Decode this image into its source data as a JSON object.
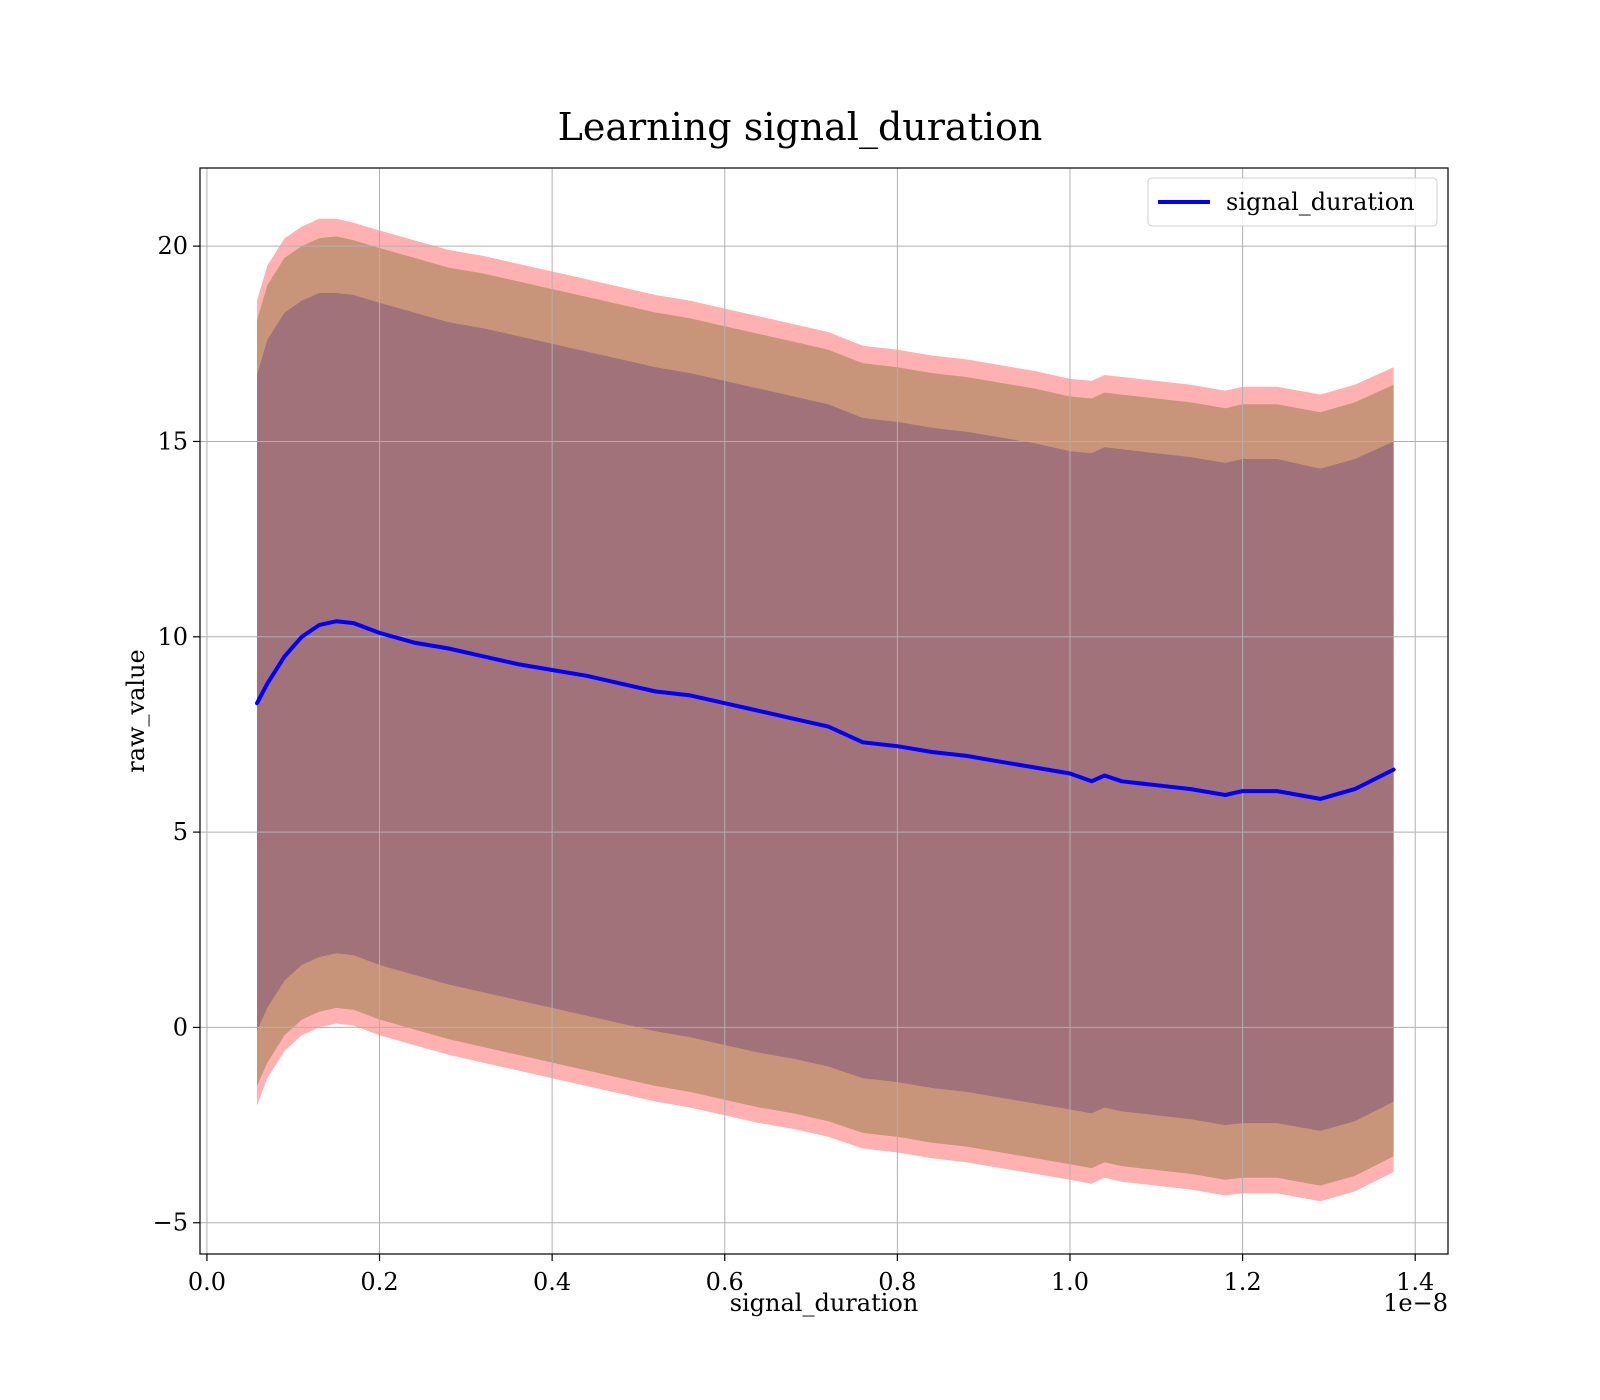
{
  "chart_data": {
    "type": "area",
    "title": "Learning signal_duration",
    "xlabel": "signal_duration",
    "ylabel": "raw_value",
    "x_offset_label": "1e−8",
    "xlim": [
      -0.008,
      1.438
    ],
    "ylim": [
      -5.8,
      22.0
    ],
    "x_ticks": [
      0.0,
      0.2,
      0.4,
      0.6,
      0.8,
      1.0,
      1.2,
      1.4
    ],
    "x_tick_labels": [
      "0.0",
      "0.2",
      "0.4",
      "0.6",
      "0.8",
      "1.0",
      "1.2",
      "1.4"
    ],
    "y_ticks": [
      -5,
      0,
      5,
      10,
      15,
      20
    ],
    "y_tick_labels": [
      "−5",
      "0",
      "5",
      "10",
      "15",
      "20"
    ],
    "grid": true,
    "legend": {
      "position": "top-right",
      "entries": [
        "signal_duration"
      ]
    },
    "colors": {
      "line": "#0000ff",
      "outer_band": "#ffb0b0",
      "middle_band": "#c8957a",
      "inner_band": "#a2727b"
    },
    "x": [
      0.058,
      0.07,
      0.09,
      0.11,
      0.13,
      0.15,
      0.17,
      0.2,
      0.24,
      0.28,
      0.32,
      0.36,
      0.4,
      0.44,
      0.48,
      0.52,
      0.56,
      0.6,
      0.64,
      0.68,
      0.72,
      0.76,
      0.8,
      0.84,
      0.88,
      0.92,
      0.96,
      1.0,
      1.025,
      1.04,
      1.06,
      1.1,
      1.14,
      1.18,
      1.2,
      1.24,
      1.29,
      1.33,
      1.375
    ],
    "series": [
      {
        "name": "signal_duration",
        "values": [
          8.3,
          8.8,
          9.5,
          10.0,
          10.3,
          10.4,
          10.35,
          10.1,
          9.85,
          9.7,
          9.5,
          9.3,
          9.15,
          9.0,
          8.8,
          8.6,
          8.5,
          8.3,
          8.1,
          7.9,
          7.7,
          7.3,
          7.2,
          7.05,
          6.95,
          6.8,
          6.65,
          6.5,
          6.3,
          6.45,
          6.3,
          6.2,
          6.1,
          5.95,
          6.05,
          6.05,
          5.85,
          6.1,
          6.6
        ]
      }
    ],
    "bands": [
      {
        "upper": [
          18.6,
          19.5,
          20.2,
          20.5,
          20.7,
          20.7,
          20.6,
          20.4,
          20.15,
          19.9,
          19.75,
          19.55,
          19.35,
          19.15,
          18.95,
          18.75,
          18.6,
          18.4,
          18.2,
          18.0,
          17.8,
          17.45,
          17.35,
          17.2,
          17.1,
          16.95,
          16.8,
          16.6,
          16.55,
          16.7,
          16.65,
          16.55,
          16.45,
          16.3,
          16.4,
          16.4,
          16.2,
          16.45,
          16.9
        ],
        "lower": [
          -2.0,
          -1.3,
          -0.6,
          -0.2,
          0.0,
          0.1,
          0.05,
          -0.2,
          -0.45,
          -0.7,
          -0.9,
          -1.1,
          -1.3,
          -1.5,
          -1.7,
          -1.9,
          -2.05,
          -2.25,
          -2.45,
          -2.6,
          -2.8,
          -3.1,
          -3.2,
          -3.35,
          -3.45,
          -3.6,
          -3.75,
          -3.9,
          -4.0,
          -3.85,
          -3.95,
          -4.05,
          -4.15,
          -4.3,
          -4.25,
          -4.25,
          -4.45,
          -4.2,
          -3.7
        ]
      },
      {
        "upper": [
          18.1,
          19.0,
          19.7,
          20.0,
          20.2,
          20.25,
          20.15,
          19.95,
          19.7,
          19.45,
          19.3,
          19.1,
          18.9,
          18.7,
          18.5,
          18.3,
          18.15,
          17.95,
          17.75,
          17.55,
          17.35,
          17.0,
          16.9,
          16.75,
          16.65,
          16.5,
          16.35,
          16.15,
          16.1,
          16.25,
          16.2,
          16.1,
          16.0,
          15.85,
          15.95,
          15.95,
          15.75,
          16.0,
          16.45
        ],
        "lower": [
          -1.5,
          -0.9,
          -0.2,
          0.2,
          0.4,
          0.5,
          0.45,
          0.2,
          -0.05,
          -0.3,
          -0.5,
          -0.7,
          -0.9,
          -1.1,
          -1.3,
          -1.5,
          -1.65,
          -1.85,
          -2.05,
          -2.2,
          -2.4,
          -2.7,
          -2.8,
          -2.95,
          -3.05,
          -3.2,
          -3.35,
          -3.5,
          -3.6,
          -3.45,
          -3.55,
          -3.65,
          -3.75,
          -3.9,
          -3.85,
          -3.85,
          -4.05,
          -3.8,
          -3.3
        ]
      },
      {
        "upper": [
          16.7,
          17.6,
          18.3,
          18.6,
          18.8,
          18.8,
          18.75,
          18.55,
          18.3,
          18.05,
          17.9,
          17.7,
          17.5,
          17.3,
          17.1,
          16.9,
          16.75,
          16.55,
          16.35,
          16.15,
          15.95,
          15.6,
          15.5,
          15.35,
          15.25,
          15.1,
          14.95,
          14.75,
          14.7,
          14.85,
          14.8,
          14.7,
          14.6,
          14.45,
          14.55,
          14.55,
          14.3,
          14.55,
          15.0
        ],
        "lower": [
          -0.1,
          0.5,
          1.2,
          1.6,
          1.8,
          1.9,
          1.85,
          1.6,
          1.35,
          1.1,
          0.9,
          0.7,
          0.5,
          0.3,
          0.1,
          -0.1,
          -0.25,
          -0.45,
          -0.65,
          -0.8,
          -1.0,
          -1.3,
          -1.4,
          -1.55,
          -1.65,
          -1.8,
          -1.95,
          -2.1,
          -2.2,
          -2.05,
          -2.15,
          -2.25,
          -2.35,
          -2.5,
          -2.45,
          -2.45,
          -2.65,
          -2.4,
          -1.9
        ]
      }
    ]
  }
}
